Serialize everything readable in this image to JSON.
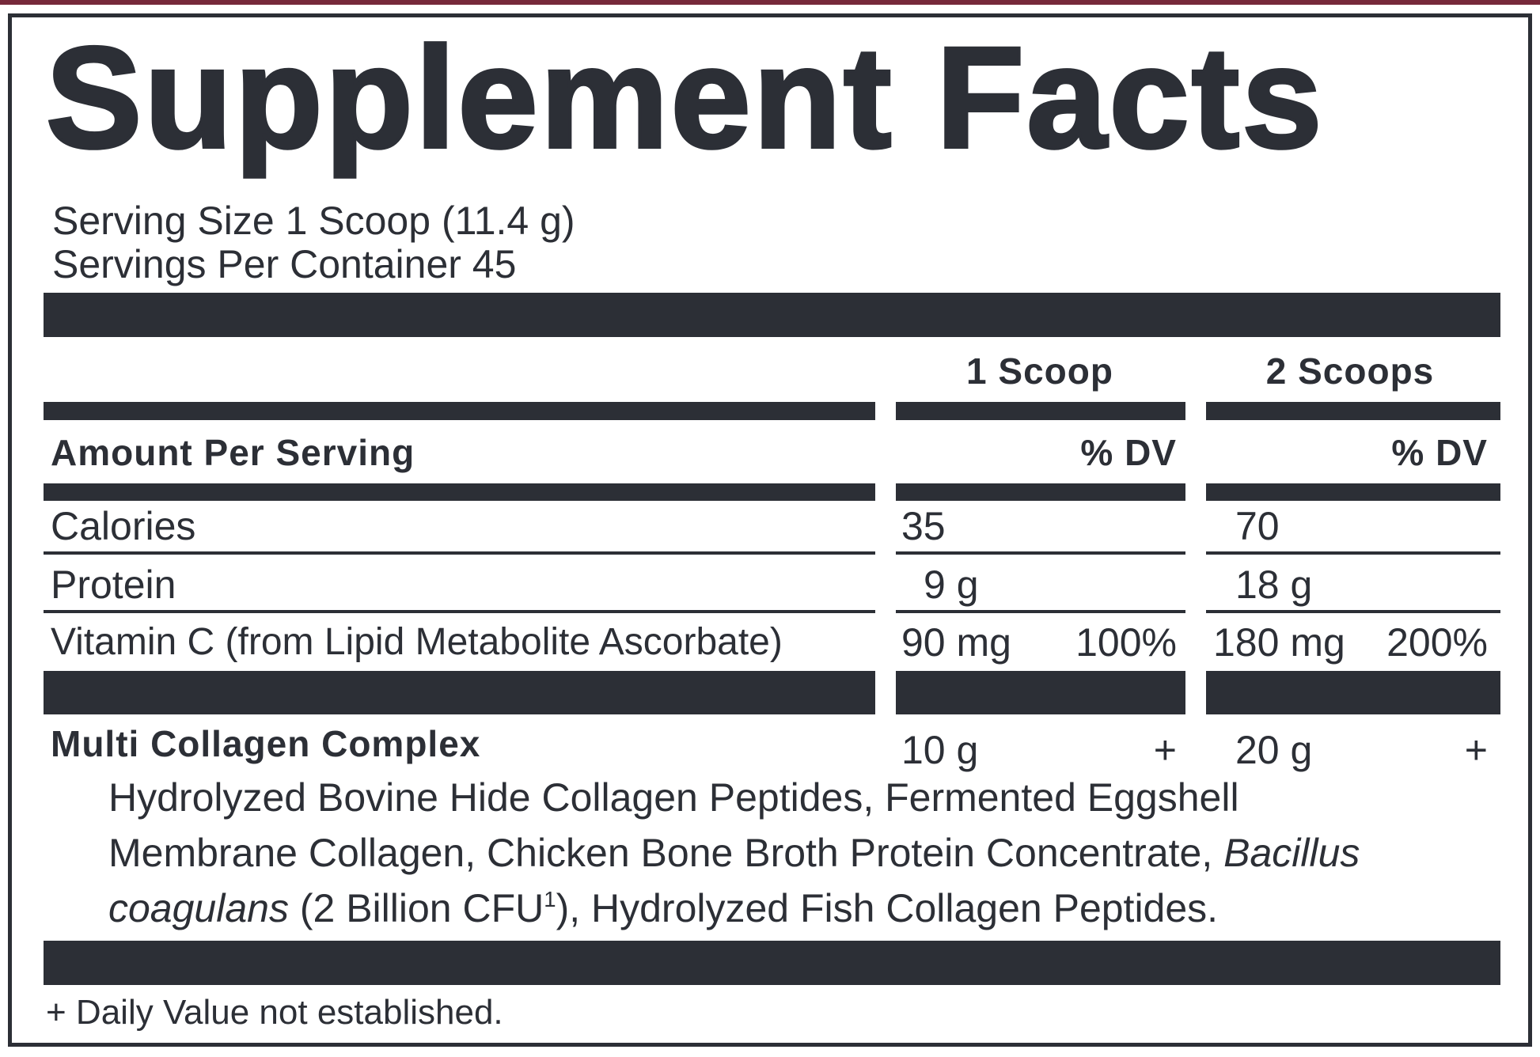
{
  "title": "Supplement Facts",
  "serving_size": "Serving Size 1 Scoop (11.4 g)",
  "servings_per_container": "Servings Per Container 45",
  "columns": [
    "1 Scoop",
    "2 Scoops"
  ],
  "amount_per_serving": "Amount Per Serving",
  "dv_header": "% DV",
  "rows": [
    {
      "name": "Calories",
      "col1_amount": "35",
      "col1_dv": "",
      "col2_amount": "70",
      "col2_dv": ""
    },
    {
      "name": "Protein",
      "col1_amount": "9 g",
      "col1_dv": "",
      "col2_amount": "18 g",
      "col2_dv": ""
    },
    {
      "name": "Vitamin C (from Lipid Metabolite Ascorbate)",
      "col1_amount": "90 mg",
      "col1_dv": "100%",
      "col2_amount": "180 mg",
      "col2_dv": "200%"
    }
  ],
  "blend": {
    "name": "Multi Collagen Complex",
    "col1_amount": "10 g",
    "col1_dv": "+",
    "col2_amount": "20 g",
    "col2_dv": "+",
    "ingredients_line1": "Hydrolyzed Bovine Hide Collagen Peptides, Fermented Eggshell",
    "ingredients_line2a": "Membrane Collagen, Chicken Bone Broth Protein Concentrate, ",
    "ingredients_line2b": "Bacillus",
    "ingredients_line3a": "coagulans",
    "ingredients_line3b": " (2 Billion CFU",
    "ingredients_line3sup": "1",
    "ingredients_line3c": "), Hydrolyzed Fish Collagen Peptides."
  },
  "footnote": "+ Daily Value not established.",
  "colors": {
    "ink": "#2c2f36",
    "accent": "#76293a"
  }
}
